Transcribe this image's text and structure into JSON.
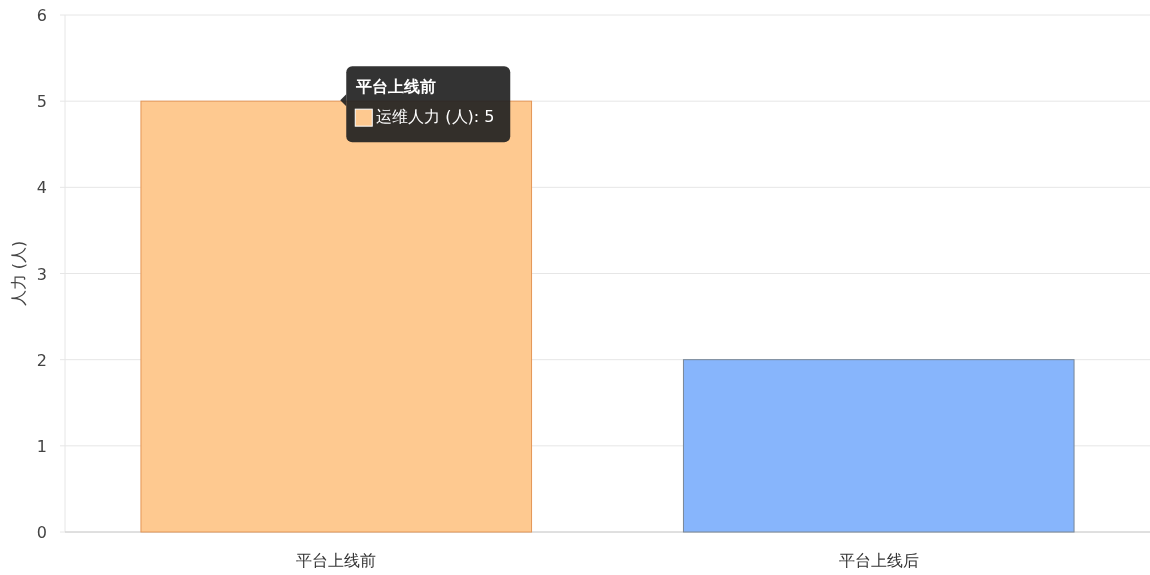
{
  "chart_data": {
    "type": "bar",
    "ylabel": "人力 (人)",
    "categories": [
      "平台上线前",
      "平台上线后"
    ],
    "values": [
      5,
      2
    ],
    "colors": [
      "#fec990",
      "#87b5fc"
    ],
    "ylim": [
      0,
      6
    ],
    "yticks": [
      0,
      1,
      2,
      3,
      4,
      5,
      6
    ],
    "grid": "y",
    "annotations": [
      {
        "text": "平台上线前",
        "x": "平台上线前",
        "y": 5
      },
      "运维人力 (人): 5"
    ]
  }
}
